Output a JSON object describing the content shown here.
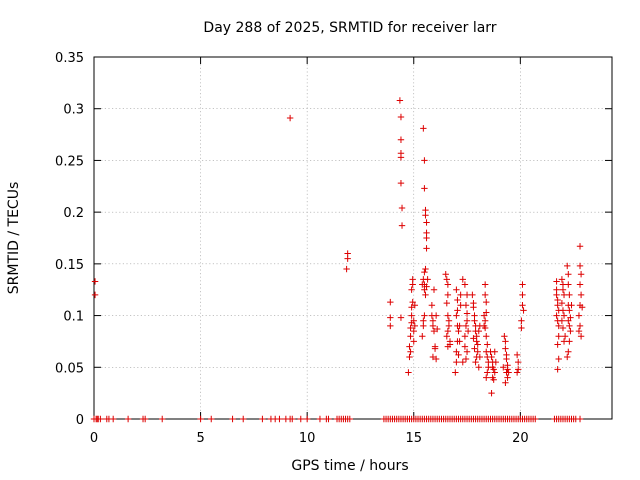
{
  "chart_data": {
    "type": "scatter",
    "title": "Day 288 of 2025, SRMTID for receiver larr",
    "xlabel": "GPS time / hours",
    "ylabel": "SRMTID / TECUs",
    "xlim": [
      0,
      24.3
    ],
    "ylim": [
      0,
      0.35
    ],
    "xticks": [
      0,
      5,
      10,
      15,
      20
    ],
    "xtick_labels": [
      "0",
      "5",
      "10",
      "15",
      "20"
    ],
    "yticks": [
      0,
      0.05,
      0.1,
      0.15,
      0.2,
      0.25,
      0.3,
      0.35
    ],
    "ytick_labels": [
      "0",
      "0.05",
      "0.1",
      "0.15",
      "0.2",
      "0.25",
      "0.3",
      "0.35"
    ],
    "grid": true,
    "marker": "plus",
    "color": "#dd0000",
    "series": [
      {
        "name": "SRMTID",
        "points": [
          [
            0.05,
            0.133
          ],
          [
            0.05,
            0.12
          ],
          [
            9.2,
            0.291
          ],
          [
            11.9,
            0.16
          ],
          [
            11.9,
            0.155
          ],
          [
            11.85,
            0.145
          ],
          [
            13.9,
            0.113
          ],
          [
            13.9,
            0.098
          ],
          [
            13.9,
            0.09
          ],
          [
            14.35,
            0.308
          ],
          [
            14.4,
            0.292
          ],
          [
            14.4,
            0.27
          ],
          [
            14.4,
            0.257
          ],
          [
            14.4,
            0.253
          ],
          [
            14.4,
            0.228
          ],
          [
            14.45,
            0.204
          ],
          [
            14.45,
            0.187
          ],
          [
            14.4,
            0.098
          ],
          [
            14.75,
            0.045
          ],
          [
            14.8,
            0.06
          ],
          [
            14.8,
            0.07
          ],
          [
            14.85,
            0.08
          ],
          [
            14.85,
            0.088
          ],
          [
            14.9,
            0.093
          ],
          [
            14.9,
            0.1
          ],
          [
            14.9,
            0.108
          ],
          [
            14.95,
            0.113
          ],
          [
            14.9,
            0.125
          ],
          [
            14.95,
            0.13
          ],
          [
            14.95,
            0.135
          ],
          [
            15.0,
            0.085
          ],
          [
            15.0,
            0.075
          ],
          [
            15.0,
            0.095
          ],
          [
            15.05,
            0.11
          ],
          [
            14.85,
            0.065
          ],
          [
            15.05,
            0.09
          ],
          [
            15.45,
            0.281
          ],
          [
            15.5,
            0.25
          ],
          [
            15.5,
            0.223
          ],
          [
            15.55,
            0.202
          ],
          [
            15.55,
            0.197
          ],
          [
            15.6,
            0.19
          ],
          [
            15.6,
            0.18
          ],
          [
            15.6,
            0.175
          ],
          [
            15.6,
            0.165
          ],
          [
            15.55,
            0.145
          ],
          [
            15.5,
            0.142
          ],
          [
            15.45,
            0.135
          ],
          [
            15.5,
            0.13
          ],
          [
            15.5,
            0.125
          ],
          [
            15.55,
            0.12
          ],
          [
            15.6,
            0.128
          ],
          [
            15.4,
            0.13
          ],
          [
            15.65,
            0.135
          ],
          [
            15.45,
            0.095
          ],
          [
            15.45,
            0.09
          ],
          [
            15.4,
            0.08
          ],
          [
            15.5,
            0.1
          ],
          [
            15.85,
            0.1
          ],
          [
            15.9,
            0.095
          ],
          [
            15.9,
            0.09
          ],
          [
            15.95,
            0.085
          ],
          [
            16.0,
            0.07
          ],
          [
            15.9,
            0.06
          ],
          [
            16.05,
            0.058
          ],
          [
            16.1,
            0.087
          ],
          [
            16.05,
            0.1
          ],
          [
            16.0,
            0.068
          ],
          [
            15.85,
            0.11
          ],
          [
            15.95,
            0.125
          ],
          [
            16.5,
            0.14
          ],
          [
            16.55,
            0.135
          ],
          [
            16.6,
            0.13
          ],
          [
            16.6,
            0.12
          ],
          [
            16.55,
            0.112
          ],
          [
            16.6,
            0.1
          ],
          [
            16.65,
            0.09
          ],
          [
            16.6,
            0.085
          ],
          [
            16.55,
            0.08
          ],
          [
            16.7,
            0.075
          ],
          [
            16.7,
            0.072
          ],
          [
            16.65,
            0.095
          ],
          [
            16.6,
            0.07
          ],
          [
            17.0,
            0.125
          ],
          [
            17.05,
            0.115
          ],
          [
            17.05,
            0.105
          ],
          [
            17.0,
            0.1
          ],
          [
            17.05,
            0.09
          ],
          [
            17.1,
            0.085
          ],
          [
            17.05,
            0.075
          ],
          [
            17.0,
            0.065
          ],
          [
            17.0,
            0.055
          ],
          [
            16.95,
            0.045
          ],
          [
            17.1,
            0.062
          ],
          [
            17.15,
            0.075
          ],
          [
            17.15,
            0.09
          ],
          [
            17.2,
            0.12
          ],
          [
            17.2,
            0.11
          ],
          [
            17.3,
            0.135
          ],
          [
            17.4,
            0.13
          ],
          [
            17.5,
            0.12
          ],
          [
            17.45,
            0.11
          ],
          [
            17.5,
            0.102
          ],
          [
            17.5,
            0.095
          ],
          [
            17.45,
            0.09
          ],
          [
            17.4,
            0.08
          ],
          [
            17.4,
            0.07
          ],
          [
            17.5,
            0.065
          ],
          [
            17.55,
            0.085
          ],
          [
            17.3,
            0.055
          ],
          [
            17.45,
            0.058
          ],
          [
            17.75,
            0.12
          ],
          [
            17.8,
            0.112
          ],
          [
            17.8,
            0.108
          ],
          [
            17.85,
            0.1
          ],
          [
            17.85,
            0.095
          ],
          [
            17.9,
            0.09
          ],
          [
            17.9,
            0.085
          ],
          [
            17.95,
            0.08
          ],
          [
            17.95,
            0.075
          ],
          [
            18.0,
            0.072
          ],
          [
            18.0,
            0.065
          ],
          [
            17.95,
            0.06
          ],
          [
            17.9,
            0.055
          ],
          [
            17.85,
            0.068
          ],
          [
            18.05,
            0.05
          ],
          [
            18.05,
            0.085
          ],
          [
            18.1,
            0.09
          ],
          [
            17.8,
            0.078
          ],
          [
            18.1,
            0.06
          ],
          [
            18.35,
            0.13
          ],
          [
            18.35,
            0.12
          ],
          [
            18.4,
            0.113
          ],
          [
            18.4,
            0.103
          ],
          [
            18.35,
            0.095
          ],
          [
            18.35,
            0.088
          ],
          [
            18.4,
            0.08
          ],
          [
            18.45,
            0.072
          ],
          [
            18.4,
            0.065
          ],
          [
            18.45,
            0.06
          ],
          [
            18.5,
            0.055
          ],
          [
            18.5,
            0.05
          ],
          [
            18.45,
            0.045
          ],
          [
            18.4,
            0.04
          ],
          [
            18.3,
            0.1
          ],
          [
            18.3,
            0.09
          ],
          [
            18.6,
            0.065
          ],
          [
            18.65,
            0.06
          ],
          [
            18.7,
            0.055
          ],
          [
            18.7,
            0.05
          ],
          [
            18.75,
            0.048
          ],
          [
            18.8,
            0.045
          ],
          [
            18.7,
            0.04
          ],
          [
            18.65,
            0.025
          ],
          [
            18.8,
            0.065
          ],
          [
            18.85,
            0.055
          ],
          [
            18.75,
            0.038
          ],
          [
            19.25,
            0.08
          ],
          [
            19.3,
            0.075
          ],
          [
            19.3,
            0.068
          ],
          [
            19.35,
            0.062
          ],
          [
            19.35,
            0.058
          ],
          [
            19.4,
            0.052
          ],
          [
            19.4,
            0.048
          ],
          [
            19.35,
            0.045
          ],
          [
            19.4,
            0.04
          ],
          [
            19.3,
            0.035
          ],
          [
            19.45,
            0.045
          ],
          [
            19.2,
            0.05
          ],
          [
            19.85,
            0.062
          ],
          [
            19.9,
            0.055
          ],
          [
            19.9,
            0.048
          ],
          [
            19.85,
            0.045
          ],
          [
            20.1,
            0.13
          ],
          [
            20.1,
            0.12
          ],
          [
            20.1,
            0.11
          ],
          [
            20.15,
            0.105
          ],
          [
            20.05,
            0.095
          ],
          [
            20.05,
            0.088
          ],
          [
            21.7,
            0.125
          ],
          [
            21.7,
            0.12
          ],
          [
            21.75,
            0.115
          ],
          [
            21.75,
            0.11
          ],
          [
            21.8,
            0.105
          ],
          [
            21.7,
            0.1
          ],
          [
            21.75,
            0.095
          ],
          [
            21.8,
            0.09
          ],
          [
            21.8,
            0.08
          ],
          [
            21.75,
            0.072
          ],
          [
            21.8,
            0.058
          ],
          [
            21.75,
            0.048
          ],
          [
            21.7,
            0.133
          ],
          [
            21.95,
            0.135
          ],
          [
            22.0,
            0.13
          ],
          [
            22.0,
            0.125
          ],
          [
            22.05,
            0.12
          ],
          [
            21.95,
            0.112
          ],
          [
            22.0,
            0.105
          ],
          [
            22.05,
            0.1
          ],
          [
            21.95,
            0.095
          ],
          [
            22.0,
            0.088
          ],
          [
            22.1,
            0.08
          ],
          [
            22.05,
            0.075
          ],
          [
            22.2,
            0.148
          ],
          [
            22.25,
            0.14
          ],
          [
            22.25,
            0.13
          ],
          [
            22.3,
            0.12
          ],
          [
            22.25,
            0.11
          ],
          [
            22.3,
            0.105
          ],
          [
            22.35,
            0.098
          ],
          [
            22.3,
            0.09
          ],
          [
            22.35,
            0.085
          ],
          [
            22.3,
            0.075
          ],
          [
            22.25,
            0.065
          ],
          [
            22.2,
            0.06
          ],
          [
            22.25,
            0.095
          ],
          [
            22.4,
            0.11
          ],
          [
            22.8,
            0.167
          ],
          [
            22.8,
            0.148
          ],
          [
            22.85,
            0.14
          ],
          [
            22.8,
            0.13
          ],
          [
            22.85,
            0.12
          ],
          [
            22.8,
            0.11
          ],
          [
            22.75,
            0.1
          ],
          [
            22.8,
            0.09
          ],
          [
            22.75,
            0.085
          ],
          [
            22.85,
            0.08
          ],
          [
            22.9,
            0.108
          ]
        ],
        "zero_x": [
          0.0,
          0.1,
          0.15,
          0.2,
          0.3,
          0.6,
          0.7,
          0.9,
          1.6,
          2.3,
          2.4,
          3.2,
          5.0,
          5.5,
          6.5,
          7.0,
          7.9,
          8.3,
          8.5,
          8.7,
          9.0,
          9.2,
          9.3,
          9.7,
          10.0,
          10.6,
          10.9,
          11.0,
          11.4,
          11.5,
          11.6,
          11.7,
          11.8,
          11.9,
          12.0,
          13.6,
          13.7,
          13.8,
          13.9,
          14.0,
          14.1,
          14.2,
          14.3,
          14.4,
          14.5,
          14.6,
          14.7,
          14.8,
          14.9,
          15.0,
          15.1,
          15.2,
          15.3,
          15.4,
          15.5,
          15.6,
          15.7,
          15.8,
          15.9,
          16.0,
          16.1,
          16.2,
          16.3,
          16.4,
          16.5,
          16.6,
          16.7,
          16.8,
          16.9,
          17.0,
          17.1,
          17.2,
          17.3,
          17.4,
          17.5,
          17.6,
          17.7,
          17.8,
          17.9,
          18.0,
          18.1,
          18.2,
          18.3,
          18.4,
          18.5,
          18.6,
          18.7,
          18.8,
          18.9,
          19.0,
          19.1,
          19.2,
          19.3,
          19.4,
          19.5,
          19.6,
          19.7,
          19.8,
          19.9,
          20.0,
          20.1,
          20.2,
          20.3,
          20.4,
          20.5,
          20.6,
          20.7,
          21.6,
          21.7,
          21.8,
          21.9,
          22.0,
          22.1,
          22.2,
          22.3,
          22.4,
          22.5,
          22.6,
          22.8
        ]
      }
    ]
  }
}
